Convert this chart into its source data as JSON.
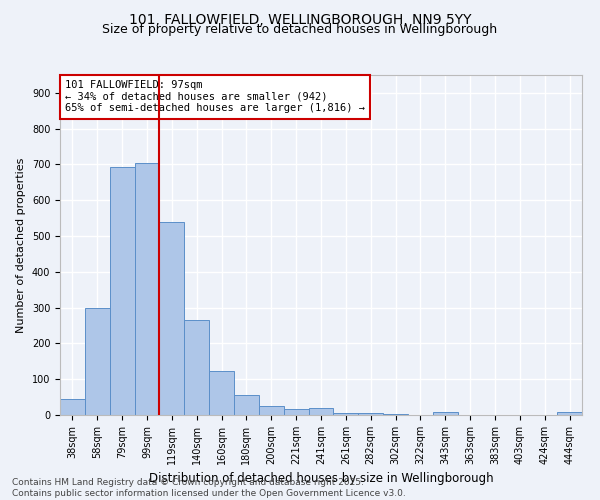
{
  "title1": "101, FALLOWFIELD, WELLINGBOROUGH, NN9 5YY",
  "title2": "Size of property relative to detached houses in Wellingborough",
  "xlabel": "Distribution of detached houses by size in Wellingborough",
  "ylabel": "Number of detached properties",
  "categories": [
    "38sqm",
    "58sqm",
    "79sqm",
    "99sqm",
    "119sqm",
    "140sqm",
    "160sqm",
    "180sqm",
    "200sqm",
    "221sqm",
    "241sqm",
    "261sqm",
    "282sqm",
    "302sqm",
    "322sqm",
    "343sqm",
    "363sqm",
    "383sqm",
    "403sqm",
    "424sqm",
    "444sqm"
  ],
  "values": [
    45,
    300,
    693,
    703,
    538,
    265,
    123,
    57,
    26,
    17,
    20,
    5,
    6,
    2,
    0,
    7,
    1,
    0,
    0,
    0,
    8
  ],
  "bar_color": "#aec6e8",
  "bar_edge_color": "#5b8fc9",
  "vline_x": 3.5,
  "annotation_line1": "101 FALLOWFIELD: 97sqm",
  "annotation_line2": "← 34% of detached houses are smaller (942)",
  "annotation_line3": "65% of semi-detached houses are larger (1,816) →",
  "annotation_box_color": "#ffffff",
  "annotation_box_edge_color": "#cc0000",
  "vline_color": "#cc0000",
  "ylim": [
    0,
    950
  ],
  "yticks": [
    0,
    100,
    200,
    300,
    400,
    500,
    600,
    700,
    800,
    900
  ],
  "background_color": "#eef2f9",
  "grid_color": "#ffffff",
  "footnote1": "Contains HM Land Registry data © Crown copyright and database right 2025.",
  "footnote2": "Contains public sector information licensed under the Open Government Licence v3.0.",
  "title1_fontsize": 10,
  "title2_fontsize": 9,
  "xlabel_fontsize": 8.5,
  "ylabel_fontsize": 8,
  "tick_fontsize": 7,
  "annotation_fontsize": 7.5,
  "footnote_fontsize": 6.5
}
